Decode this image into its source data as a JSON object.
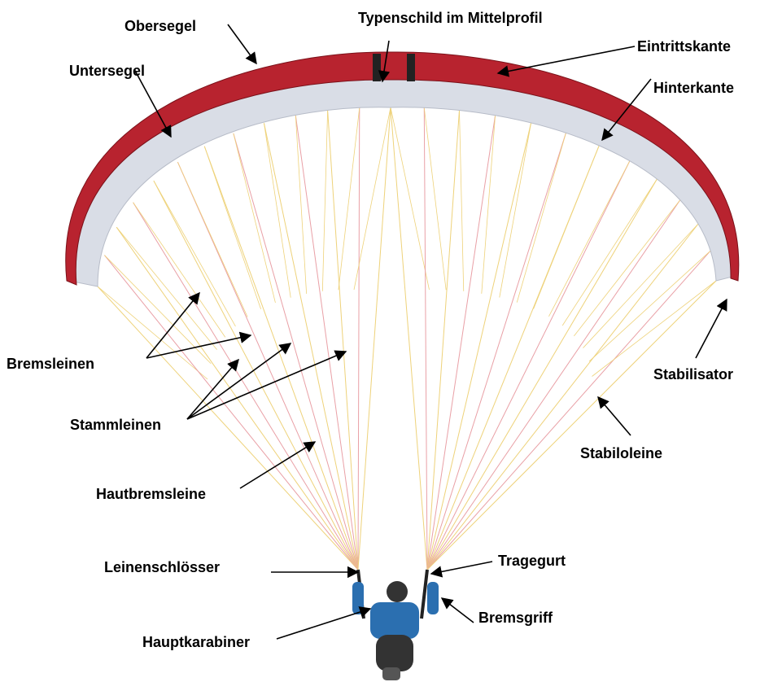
{
  "labels": [
    "Obersegel",
    "Typenschild im Mittelprofil",
    "Eintrittskante",
    "Untersegel",
    "Hinterkante",
    "Bremsleinen",
    "Stammleinen",
    "Hautbremsleine",
    "Leinenschlösser",
    "Tragegurt",
    "Bremsgriff",
    "Hauptkarabiner",
    "Stabilisator",
    "Stabiloleine"
  ]
}
